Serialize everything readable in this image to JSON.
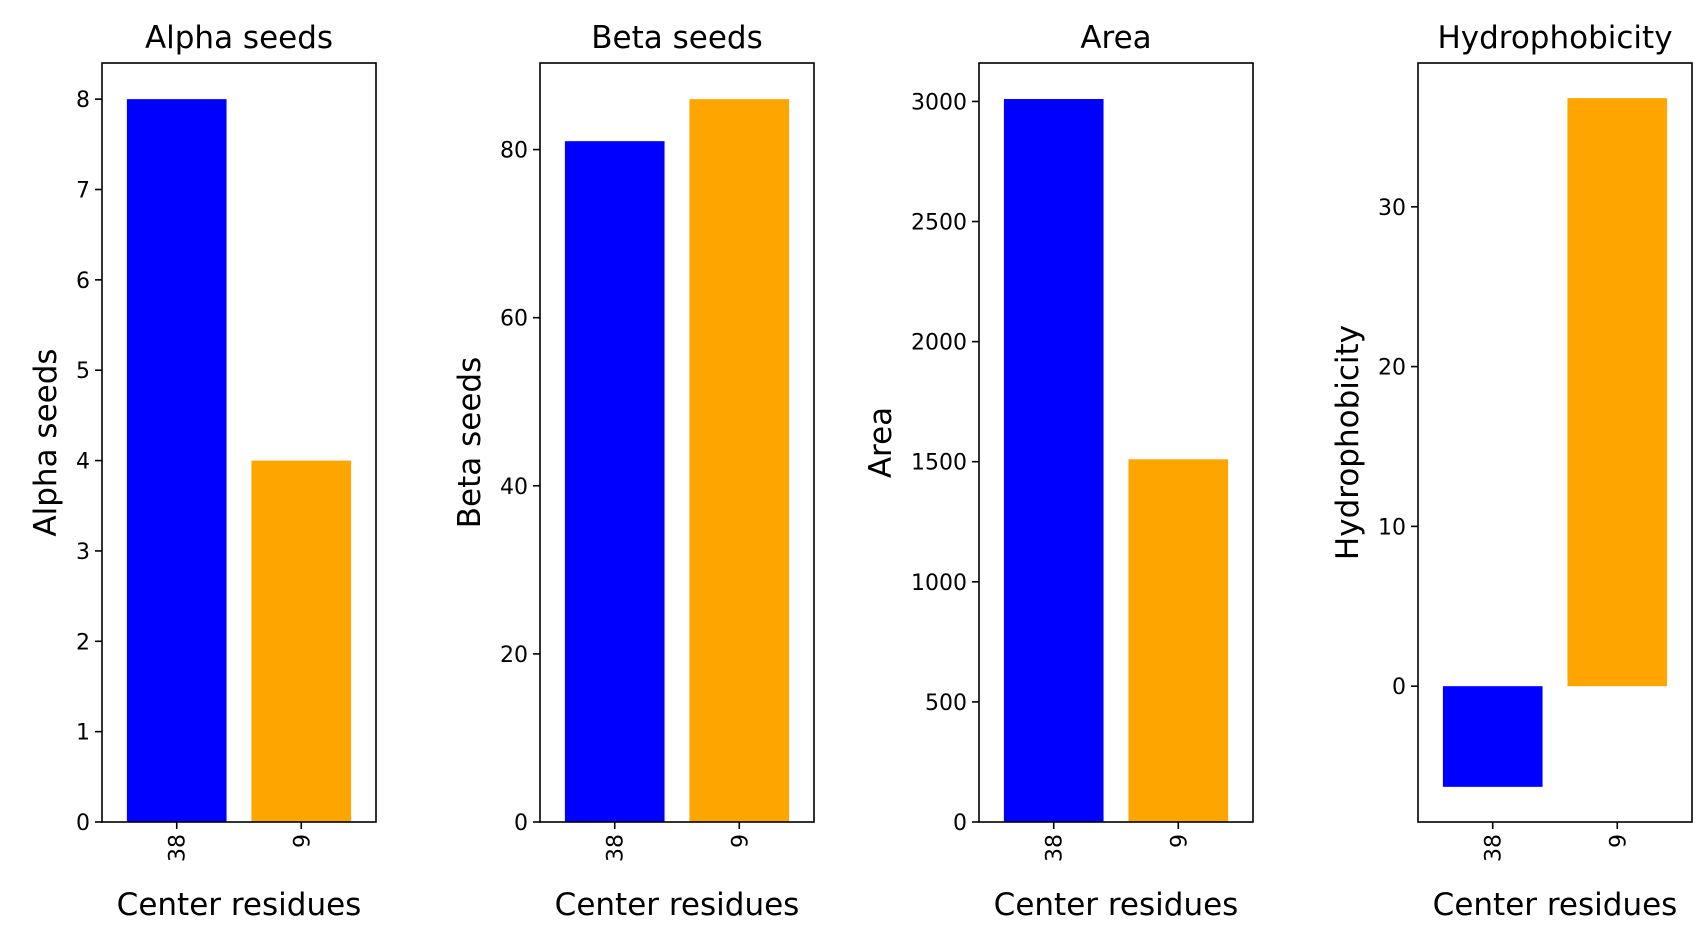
{
  "colors": {
    "bar1": "#0000ff",
    "bar2": "#ffa500"
  },
  "chart_data": [
    {
      "type": "bar",
      "title": "Alpha seeds",
      "xlabel": "Center residues",
      "ylabel": "Alpha seeds",
      "categories": [
        "38",
        "9"
      ],
      "values": [
        8,
        4
      ],
      "ylim": [
        0,
        8.4
      ],
      "yticks": [
        0,
        1,
        2,
        3,
        4,
        5,
        6,
        7,
        8
      ],
      "ytick_labels": [
        "0",
        "1",
        "2",
        "3",
        "4",
        "5",
        "6",
        "7",
        "8"
      ],
      "grid": false
    },
    {
      "type": "bar",
      "title": "Beta seeds",
      "xlabel": "Center residues",
      "ylabel": "Beta seeds",
      "categories": [
        "38",
        "9"
      ],
      "values": [
        81,
        86
      ],
      "ylim": [
        0,
        90.3
      ],
      "yticks": [
        0,
        20,
        40,
        60,
        80
      ],
      "ytick_labels": [
        "0",
        "20",
        "40",
        "60",
        "80"
      ],
      "grid": false
    },
    {
      "type": "bar",
      "title": "Area",
      "xlabel": "Center residues",
      "ylabel": "Area",
      "categories": [
        "38",
        "9"
      ],
      "values": [
        3010,
        1510
      ],
      "ylim": [
        0,
        3160
      ],
      "yticks": [
        0,
        500,
        1000,
        1500,
        2000,
        2500,
        3000
      ],
      "ytick_labels": [
        "0",
        "500",
        "1000",
        "1500",
        "2000",
        "2500",
        "3000"
      ],
      "grid": false
    },
    {
      "type": "bar",
      "title": "Hydrophobicity",
      "xlabel": "Center residues",
      "ylabel": "Hydrophobicity",
      "categories": [
        "38",
        "9"
      ],
      "values": [
        -6.3,
        36.8
      ],
      "ylim": [
        -8.5,
        39
      ],
      "yticks": [
        0,
        10,
        20,
        30
      ],
      "ytick_labels": [
        "0",
        "10",
        "20",
        "30"
      ],
      "grid": false
    }
  ]
}
